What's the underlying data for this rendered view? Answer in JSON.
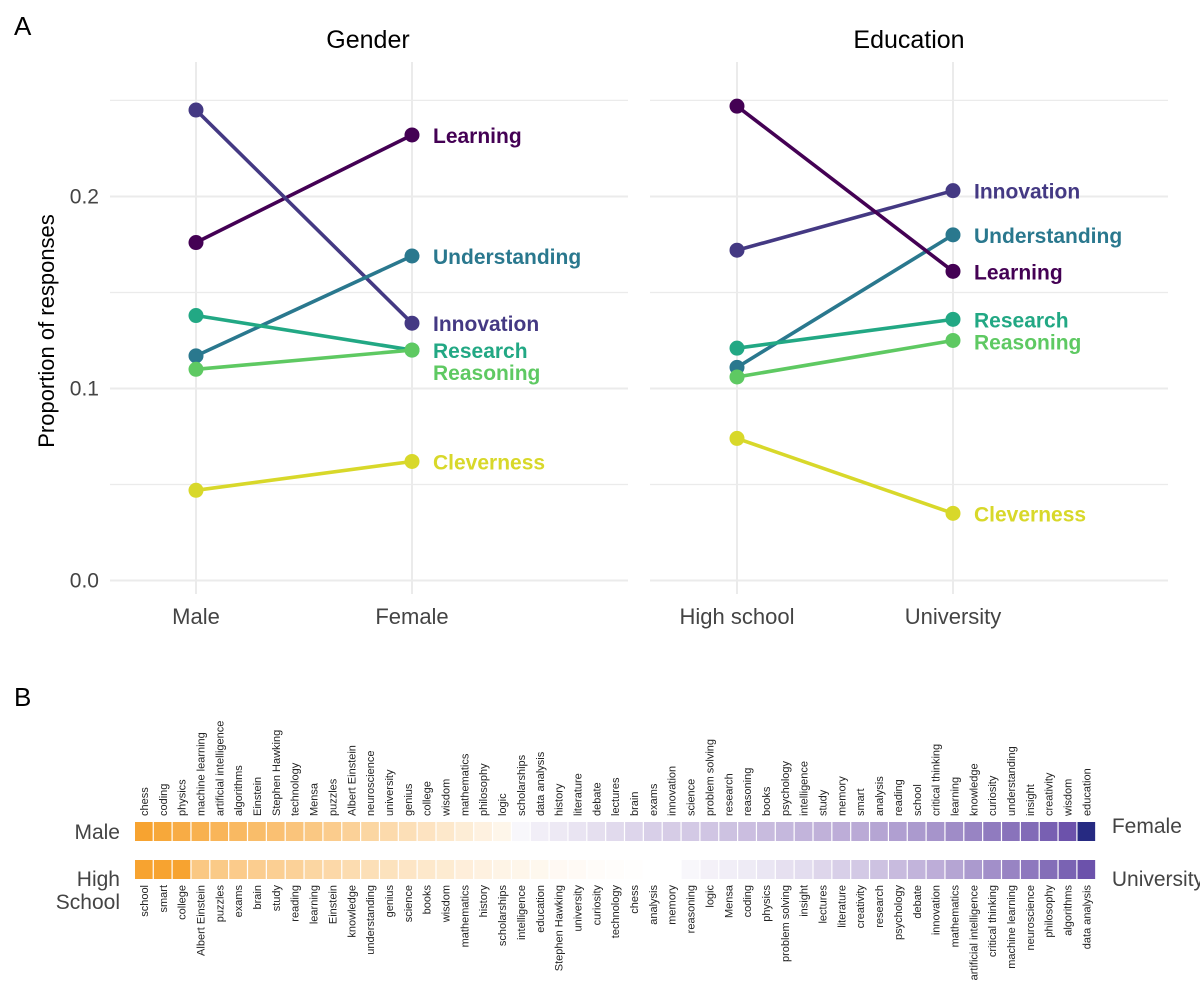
{
  "chart_data": [
    {
      "panel": "A",
      "type": "line",
      "title": "Gender",
      "ylabel": "Proportion of responses",
      "ylim": [
        -0.007,
        0.27
      ],
      "yticks": [
        0.0,
        0.1,
        0.2
      ],
      "ytick_labels": [
        "0.0",
        "0.1",
        "0.2"
      ],
      "categories": [
        "Male",
        "Female"
      ],
      "series": [
        {
          "name": "Learning",
          "color": "#440154",
          "values": [
            0.176,
            0.232
          ]
        },
        {
          "name": "Innovation",
          "color": "#443983",
          "values": [
            0.245,
            0.134
          ]
        },
        {
          "name": "Understanding",
          "color": "#2a788e",
          "values": [
            0.117,
            0.169
          ]
        },
        {
          "name": "Research",
          "color": "#22a884",
          "values": [
            0.138,
            0.12
          ]
        },
        {
          "name": "Reasoning",
          "color": "#5ec962",
          "values": [
            0.11,
            0.12
          ]
        },
        {
          "name": "Cleverness",
          "color": "#d8d82a",
          "values": [
            0.047,
            0.062
          ]
        }
      ]
    },
    {
      "panel": "A",
      "type": "line",
      "title": "Education",
      "ylabel": "",
      "ylim": [
        -0.007,
        0.27
      ],
      "categories": [
        "High school",
        "University"
      ],
      "series": [
        {
          "name": "Innovation",
          "color": "#443983",
          "values": [
            0.172,
            0.203
          ]
        },
        {
          "name": "Understanding",
          "color": "#2a788e",
          "values": [
            0.111,
            0.18
          ]
        },
        {
          "name": "Learning",
          "color": "#440154",
          "values": [
            0.247,
            0.161
          ]
        },
        {
          "name": "Research",
          "color": "#22a884",
          "values": [
            0.121,
            0.136
          ]
        },
        {
          "name": "Reasoning",
          "color": "#5ec962",
          "values": [
            0.106,
            0.125
          ]
        },
        {
          "name": "Cleverness",
          "color": "#d8d82a",
          "values": [
            0.074,
            0.035
          ]
        }
      ]
    },
    {
      "panel": "B",
      "type": "heatmap",
      "left_label": "Male",
      "right_label": "Female",
      "words": [
        "chess",
        "coding",
        "physics",
        "machine learning",
        "artificial intelligence",
        "algorithms",
        "Einstein",
        "Stephen Hawking",
        "technology",
        "Mensa",
        "puzzles",
        "Albert Einstein",
        "neuroscience",
        "university",
        "genius",
        "college",
        "wisdom",
        "mathematics",
        "philosophy",
        "logic",
        "scholarships",
        "data analysis",
        "history",
        "literature",
        "debate",
        "lectures",
        "brain",
        "exams",
        "innovation",
        "science",
        "problem solving",
        "research",
        "reasoning",
        "books",
        "psychology",
        "intelligence",
        "study",
        "memory",
        "smart",
        "analysis",
        "reading",
        "school",
        "critical thinking",
        "learning",
        "knowledge",
        "curiosity",
        "understanding",
        "insight",
        "creativity",
        "wisdom",
        "education"
      ],
      "values": [
        -1.0,
        -0.95,
        -0.9,
        -0.85,
        -0.8,
        -0.76,
        -0.72,
        -0.68,
        -0.64,
        -0.6,
        -0.55,
        -0.5,
        -0.45,
        -0.4,
        -0.35,
        -0.3,
        -0.25,
        -0.2,
        -0.15,
        -0.1,
        0.05,
        0.1,
        0.13,
        0.16,
        0.19,
        0.22,
        0.25,
        0.28,
        0.3,
        0.32,
        0.34,
        0.36,
        0.38,
        0.4,
        0.42,
        0.44,
        0.46,
        0.48,
        0.5,
        0.52,
        0.54,
        0.56,
        0.58,
        0.61,
        0.64,
        0.67,
        0.7,
        0.73,
        0.77,
        0.82,
        1.0
      ]
    },
    {
      "panel": "B",
      "type": "heatmap",
      "left_label_lines": [
        "High",
        "School"
      ],
      "right_label": "University",
      "words": [
        "school",
        "smart",
        "college",
        "Albert Einstein",
        "puzzles",
        "exams",
        "brain",
        "study",
        "reading",
        "learning",
        "Einstein",
        "knowledge",
        "understanding",
        "genius",
        "science",
        "books",
        "wisdom",
        "mathematics",
        "history",
        "scholarships",
        "intelligence",
        "education",
        "Stephen Hawking",
        "university",
        "curiosity",
        "technology",
        "chess",
        "analysis",
        "memory",
        "reasoning",
        "logic",
        "Mensa",
        "coding",
        "physics",
        "problem solving",
        "insight",
        "lectures",
        "literature",
        "creativity",
        "research",
        "psychology",
        "debate",
        "innovation",
        "mathematics",
        "artificial intelligence",
        "critical thinking",
        "machine learning",
        "neuroscience",
        "philosophy",
        "algorithms",
        "data analysis"
      ],
      "values": [
        -1.0,
        -1.0,
        -1.0,
        -0.6,
        -0.58,
        -0.56,
        -0.54,
        -0.52,
        -0.5,
        -0.45,
        -0.42,
        -0.38,
        -0.35,
        -0.32,
        -0.28,
        -0.25,
        -0.22,
        -0.18,
        -0.15,
        -0.12,
        -0.1,
        -0.08,
        -0.06,
        -0.05,
        -0.03,
        -0.02,
        -0.01,
        0.0,
        0.0,
        0.05,
        0.08,
        0.1,
        0.12,
        0.15,
        0.18,
        0.2,
        0.24,
        0.28,
        0.32,
        0.36,
        0.4,
        0.44,
        0.48,
        0.52,
        0.56,
        0.6,
        0.64,
        0.68,
        0.72,
        0.76,
        0.82
      ]
    }
  ]
}
